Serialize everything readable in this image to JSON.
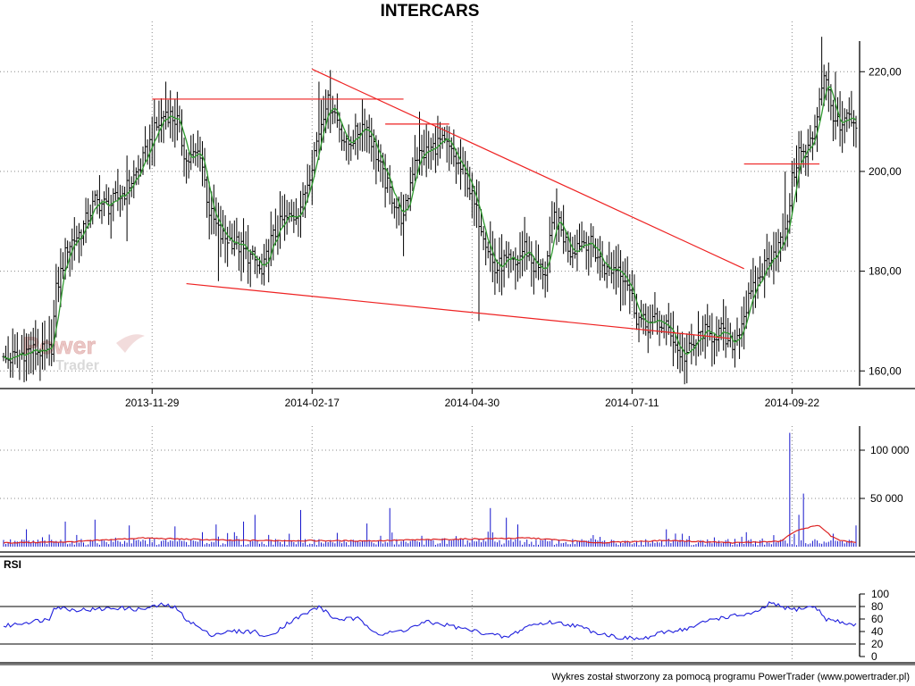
{
  "chart_data": [
    {
      "type": "candlestick",
      "title": "INTERCARS",
      "x_tick_labels": [
        "2013-11-29",
        "2014-02-17",
        "2014-04-30",
        "2014-07-11",
        "2014-09-22"
      ],
      "y_tick_labels": [
        "160,00",
        "180,00",
        "200,00",
        "220,00"
      ],
      "y_ticks": [
        160,
        180,
        200,
        220
      ],
      "ylim": [
        157,
        229
      ],
      "grid": true,
      "overlay_series": {
        "color": "#2e9a2e"
      },
      "annotation_color": "#ee2222",
      "price_color": "#000000",
      "close_anchors": [
        [
          0,
          162
        ],
        [
          6,
          163
        ],
        [
          10,
          164
        ],
        [
          16,
          164
        ],
        [
          19,
          163
        ],
        [
          21,
          165
        ],
        [
          23,
          176
        ],
        [
          28,
          185
        ],
        [
          34,
          188
        ],
        [
          40,
          194
        ],
        [
          46,
          193
        ],
        [
          53,
          196
        ],
        [
          60,
          201
        ],
        [
          66,
          208
        ],
        [
          71,
          212
        ],
        [
          76,
          210
        ],
        [
          80,
          202
        ],
        [
          86,
          204
        ],
        [
          90,
          192
        ],
        [
          95,
          187
        ],
        [
          101,
          186
        ],
        [
          105,
          184
        ],
        [
          110,
          182
        ],
        [
          113,
          179
        ],
        [
          117,
          186
        ],
        [
          122,
          190
        ],
        [
          127,
          191
        ],
        [
          131,
          194
        ],
        [
          136,
          204
        ],
        [
          141,
          214
        ],
        [
          144,
          213
        ],
        [
          150,
          205
        ],
        [
          155,
          208
        ],
        [
          158,
          210
        ],
        [
          162,
          205
        ],
        [
          166,
          199
        ],
        [
          170,
          195
        ],
        [
          175,
          190
        ],
        [
          180,
          203
        ],
        [
          186,
          204
        ],
        [
          191,
          206
        ],
        [
          194,
          205
        ],
        [
          198,
          202
        ],
        [
          203,
          198
        ],
        [
          206,
          193
        ],
        [
          210,
          188
        ],
        [
          215,
          180
        ],
        [
          219,
          182
        ],
        [
          224,
          181
        ],
        [
          228,
          185
        ],
        [
          232,
          181
        ],
        [
          237,
          180
        ],
        [
          241,
          191
        ],
        [
          244,
          188
        ],
        [
          248,
          184
        ],
        [
          252,
          186
        ],
        [
          256,
          186
        ],
        [
          260,
          183
        ],
        [
          264,
          180
        ],
        [
          269,
          181
        ],
        [
          273,
          178
        ],
        [
          277,
          171
        ],
        [
          281,
          169
        ],
        [
          285,
          170
        ],
        [
          289,
          169
        ],
        [
          292,
          168
        ],
        [
          295,
          164
        ],
        [
          298,
          163
        ],
        [
          302,
          165
        ],
        [
          306,
          168
        ],
        [
          309,
          167
        ],
        [
          314,
          168
        ],
        [
          317,
          165
        ],
        [
          320,
          166
        ],
        [
          323,
          170
        ],
        [
          326,
          174
        ],
        [
          330,
          178
        ],
        [
          335,
          183
        ],
        [
          339,
          185
        ],
        [
          342,
          187
        ],
        [
          345,
          198
        ],
        [
          348,
          204
        ],
        [
          351,
          203
        ],
        [
          354,
          207
        ],
        [
          356,
          212
        ],
        [
          359,
          220
        ],
        [
          362,
          213
        ],
        [
          366,
          208
        ],
        [
          370,
          211
        ],
        [
          373,
          207
        ]
      ],
      "events": [
        [
          16,
          158
        ],
        [
          20,
          171
        ],
        [
          34,
          183
        ],
        [
          54,
          186
        ],
        [
          66,
          201
        ],
        [
          71,
          218
        ],
        [
          86,
          200
        ],
        [
          94,
          178
        ],
        [
          99,
          186
        ],
        [
          104,
          178
        ],
        [
          117,
          181
        ],
        [
          138,
          218
        ],
        [
          175,
          183
        ],
        [
          182,
          212
        ],
        [
          208,
          170
        ],
        [
          213,
          190
        ],
        [
          223,
          184
        ],
        [
          270,
          172
        ],
        [
          300,
          164
        ],
        [
          305,
          168
        ],
        [
          342,
          200
        ],
        [
          358,
          227
        ],
        [
          364,
          220
        ]
      ],
      "trendlines": [
        {
          "from": [
            "2013-11-29",
            214.5
          ],
          "to": [
            "2014-03-31",
            214.5
          ]
        },
        {
          "from": [
            "2014-03-23",
            209.5
          ],
          "to": [
            "2014-04-20",
            209.5
          ]
        },
        {
          "from": [
            "2014-09-09",
            201.5
          ],
          "to": [
            "2014-09-30",
            201.5
          ]
        },
        {
          "from": [
            "2014-02-17",
            220.5
          ],
          "to": [
            "2014-09-09",
            180.5
          ]
        },
        {
          "from": [
            "2013-12-14",
            177.5
          ],
          "to": [
            "2014-09-05",
            166.5
          ]
        }
      ]
    },
    {
      "type": "bar",
      "name": "volume",
      "y_tick_labels": [
        "50 000",
        "100 000"
      ],
      "y_ticks": [
        50000,
        100000
      ],
      "ylim": [
        0,
        125000
      ],
      "bar_color": "#1515cc",
      "average_color": "#dd2222",
      "spikes": [
        [
          10,
          18000
        ],
        [
          27,
          26000
        ],
        [
          40,
          28000
        ],
        [
          55,
          22000
        ],
        [
          75,
          21000
        ],
        [
          93,
          23000
        ],
        [
          105,
          26000
        ],
        [
          110,
          33000
        ],
        [
          130,
          38000
        ],
        [
          159,
          24000
        ],
        [
          169,
          40000
        ],
        [
          213,
          40000
        ],
        [
          220,
          30000
        ],
        [
          225,
          23000
        ],
        [
          258,
          12000
        ],
        [
          290,
          18000
        ],
        [
          344,
          118000
        ],
        [
          348,
          33000
        ],
        [
          350,
          55000
        ],
        [
          373,
          22000
        ]
      ],
      "average_anchors": [
        [
          0,
          4000
        ],
        [
          30,
          5000
        ],
        [
          60,
          9000
        ],
        [
          100,
          6500
        ],
        [
          160,
          6000
        ],
        [
          180,
          7000
        ],
        [
          230,
          9000
        ],
        [
          260,
          4000
        ],
        [
          290,
          6500
        ],
        [
          320,
          4000
        ],
        [
          340,
          5500
        ],
        [
          345,
          14000
        ],
        [
          350,
          19000
        ],
        [
          357,
          22000
        ],
        [
          362,
          11000
        ],
        [
          366,
          6000
        ],
        [
          373,
          4500
        ]
      ]
    },
    {
      "type": "line",
      "name": "RSI",
      "label": "RSI",
      "y_tick_labels": [
        "0",
        "20",
        "40",
        "60",
        "80",
        "100"
      ],
      "y_ticks": [
        0,
        20,
        40,
        60,
        80,
        100
      ],
      "ylim": [
        0,
        100
      ],
      "reference_levels": [
        20,
        80
      ],
      "color": "#2020dd",
      "anchors": [
        [
          0,
          48
        ],
        [
          10,
          55
        ],
        [
          20,
          60
        ],
        [
          22,
          80
        ],
        [
          30,
          75
        ],
        [
          40,
          75
        ],
        [
          50,
          78
        ],
        [
          60,
          75
        ],
        [
          70,
          83
        ],
        [
          75,
          78
        ],
        [
          80,
          60
        ],
        [
          90,
          35
        ],
        [
          100,
          40
        ],
        [
          110,
          40
        ],
        [
          115,
          30
        ],
        [
          125,
          55
        ],
        [
          133,
          70
        ],
        [
          138,
          80
        ],
        [
          145,
          60
        ],
        [
          155,
          60
        ],
        [
          165,
          35
        ],
        [
          175,
          42
        ],
        [
          185,
          55
        ],
        [
          195,
          50
        ],
        [
          200,
          45
        ],
        [
          210,
          38
        ],
        [
          220,
          30
        ],
        [
          230,
          50
        ],
        [
          240,
          55
        ],
        [
          250,
          50
        ],
        [
          258,
          40
        ],
        [
          270,
          30
        ],
        [
          280,
          28
        ],
        [
          290,
          40
        ],
        [
          300,
          45
        ],
        [
          310,
          60
        ],
        [
          320,
          65
        ],
        [
          330,
          70
        ],
        [
          335,
          85
        ],
        [
          345,
          75
        ],
        [
          355,
          80
        ],
        [
          360,
          60
        ],
        [
          366,
          55
        ],
        [
          373,
          50
        ]
      ]
    }
  ],
  "watermark": {
    "line1": "Power",
    "line2": "Trader",
    "color": "#c0504d"
  },
  "footer": "Wykres został stworzony za pomocą programu PowerTrader (www.powertrader.pl)"
}
